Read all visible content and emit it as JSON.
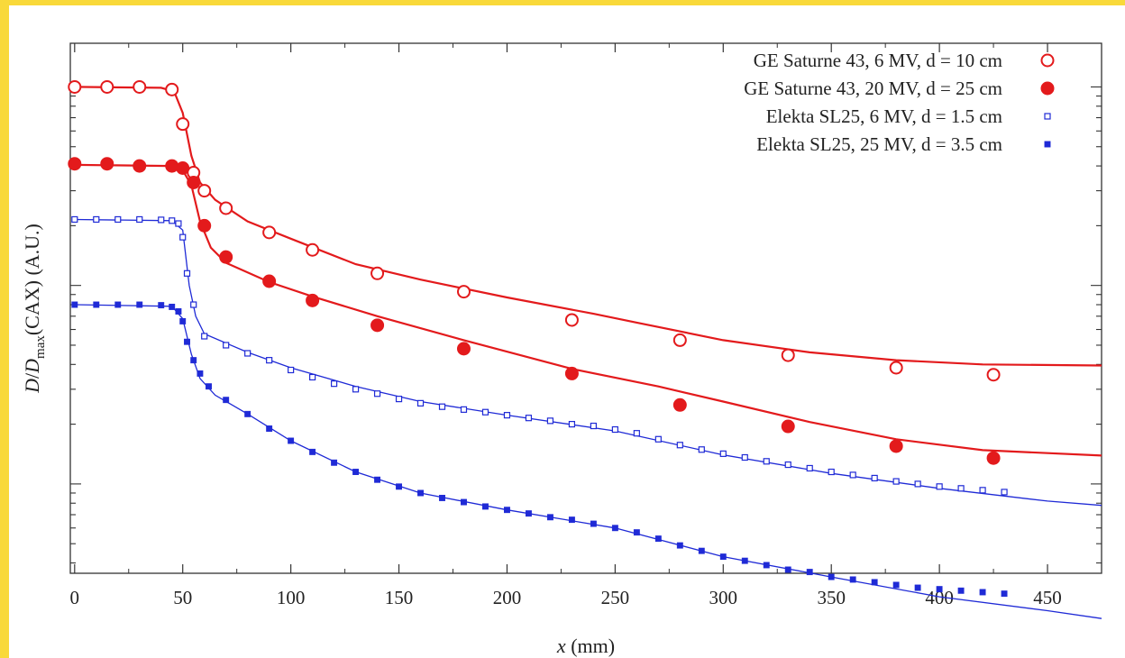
{
  "colors": {
    "red": "#e31a1c",
    "blue": "#1f2ad6",
    "frame_accent": "#f9d93a"
  },
  "chart_data": {
    "type": "scatter",
    "title": "",
    "xlabel": {
      "italic": "x",
      "rest": " (mm)"
    },
    "ylabel": {
      "italic_D": "D",
      "slash": "/",
      "italic_D2": "D",
      "subscript": "max",
      "rest": "(CAX) (A.U.)"
    },
    "xlim": [
      -2,
      475
    ],
    "ylim_log10": [
      -2.45,
      0.22
    ],
    "y_scale": "log",
    "x_ticks": [
      0,
      50,
      100,
      150,
      200,
      250,
      300,
      350,
      400,
      450
    ],
    "x_tick_labels": [
      "0",
      "50",
      "100",
      "150",
      "200",
      "250",
      "300",
      "350",
      "400",
      "450"
    ],
    "legend_position": "top-right",
    "series": [
      {
        "name": "GE Saturne 43, 6 MV, d = 10 cm",
        "color": "#e31a1c",
        "marker": "open-circle",
        "points": [
          [
            0,
            1.0
          ],
          [
            15,
            1.0
          ],
          [
            30,
            1.0
          ],
          [
            45,
            0.97
          ],
          [
            50,
            0.65
          ],
          [
            55,
            0.37
          ],
          [
            60,
            0.3
          ],
          [
            70,
            0.245
          ],
          [
            90,
            0.185
          ],
          [
            110,
            0.151
          ],
          [
            140,
            0.115
          ],
          [
            180,
            0.093
          ],
          [
            230,
            0.067
          ],
          [
            280,
            0.053
          ],
          [
            330,
            0.0445
          ],
          [
            380,
            0.0385
          ],
          [
            425,
            0.0355
          ]
        ],
        "fit": [
          [
            0,
            1.0
          ],
          [
            40,
            0.99
          ],
          [
            46,
            0.95
          ],
          [
            50,
            0.74
          ],
          [
            54,
            0.45
          ],
          [
            58,
            0.33
          ],
          [
            65,
            0.27
          ],
          [
            80,
            0.21
          ],
          [
            100,
            0.172
          ],
          [
            130,
            0.128
          ],
          [
            160,
            0.107
          ],
          [
            200,
            0.087
          ],
          [
            240,
            0.072
          ],
          [
            260,
            0.065
          ],
          [
            300,
            0.053
          ],
          [
            340,
            0.046
          ],
          [
            380,
            0.042
          ],
          [
            420,
            0.04
          ],
          [
            475,
            0.0395
          ]
        ]
      },
      {
        "name": "GE Saturne 43, 20 MV, d = 25 cm",
        "color": "#e31a1c",
        "marker": "filled-circle",
        "points": [
          [
            0,
            0.41
          ],
          [
            15,
            0.41
          ],
          [
            30,
            0.4
          ],
          [
            45,
            0.4
          ],
          [
            50,
            0.39
          ],
          [
            55,
            0.33
          ],
          [
            60,
            0.2
          ],
          [
            70,
            0.139
          ],
          [
            90,
            0.105
          ],
          [
            110,
            0.084
          ],
          [
            140,
            0.063
          ],
          [
            180,
            0.048
          ],
          [
            230,
            0.036
          ],
          [
            280,
            0.025
          ],
          [
            330,
            0.0195
          ],
          [
            380,
            0.0155
          ],
          [
            425,
            0.0135
          ]
        ],
        "fit": [
          [
            0,
            0.405
          ],
          [
            44,
            0.4
          ],
          [
            50,
            0.38
          ],
          [
            54,
            0.32
          ],
          [
            58,
            0.21
          ],
          [
            63,
            0.155
          ],
          [
            70,
            0.13
          ],
          [
            90,
            0.104
          ],
          [
            110,
            0.088
          ],
          [
            140,
            0.07
          ],
          [
            180,
            0.053
          ],
          [
            230,
            0.038
          ],
          [
            270,
            0.031
          ],
          [
            300,
            0.026
          ],
          [
            340,
            0.0205
          ],
          [
            380,
            0.0168
          ],
          [
            420,
            0.0148
          ],
          [
            475,
            0.0139
          ]
        ]
      },
      {
        "name": "Elekta SL25, 6 MV, d = 1.5 cm",
        "color": "#1f2ad6",
        "marker": "open-square",
        "points": [
          [
            0,
            0.215
          ],
          [
            10,
            0.215
          ],
          [
            20,
            0.215
          ],
          [
            30,
            0.215
          ],
          [
            40,
            0.214
          ],
          [
            45,
            0.212
          ],
          [
            48,
            0.205
          ],
          [
            50,
            0.175
          ],
          [
            52,
            0.115
          ],
          [
            55,
            0.08
          ],
          [
            60,
            0.0555
          ],
          [
            70,
            0.05
          ],
          [
            80,
            0.0455
          ],
          [
            90,
            0.042
          ],
          [
            100,
            0.0375
          ],
          [
            110,
            0.0345
          ],
          [
            120,
            0.032
          ],
          [
            130,
            0.03
          ],
          [
            140,
            0.0285
          ],
          [
            150,
            0.0268
          ],
          [
            160,
            0.0255
          ],
          [
            170,
            0.0245
          ],
          [
            180,
            0.0237
          ],
          [
            190,
            0.023
          ],
          [
            200,
            0.0222
          ],
          [
            210,
            0.0215
          ],
          [
            220,
            0.0208
          ],
          [
            230,
            0.02
          ],
          [
            240,
            0.0196
          ],
          [
            250,
            0.0188
          ],
          [
            260,
            0.018
          ],
          [
            270,
            0.0168
          ],
          [
            280,
            0.0157
          ],
          [
            290,
            0.0149
          ],
          [
            300,
            0.0142
          ],
          [
            310,
            0.0136
          ],
          [
            320,
            0.013
          ],
          [
            330,
            0.0125
          ],
          [
            340,
            0.012
          ],
          [
            350,
            0.0115
          ],
          [
            360,
            0.0111
          ],
          [
            370,
            0.0107
          ],
          [
            380,
            0.0103
          ],
          [
            390,
            0.01
          ],
          [
            400,
            0.0097
          ],
          [
            410,
            0.0095
          ],
          [
            420,
            0.0093
          ],
          [
            430,
            0.0091
          ]
        ],
        "fit": [
          [
            0,
            0.215
          ],
          [
            45,
            0.212
          ],
          [
            50,
            0.19
          ],
          [
            53,
            0.1
          ],
          [
            56,
            0.07
          ],
          [
            60,
            0.057
          ],
          [
            80,
            0.046
          ],
          [
            100,
            0.0385
          ],
          [
            130,
            0.031
          ],
          [
            160,
            0.026
          ],
          [
            200,
            0.0222
          ],
          [
            250,
            0.0185
          ],
          [
            300,
            0.014
          ],
          [
            350,
            0.0113
          ],
          [
            400,
            0.0095
          ],
          [
            450,
            0.0082
          ],
          [
            475,
            0.0078
          ]
        ]
      },
      {
        "name": "Elekta SL25, 25 MV, d = 3.5 cm",
        "color": "#1f2ad6",
        "marker": "filled-square",
        "points": [
          [
            0,
            0.08
          ],
          [
            10,
            0.08
          ],
          [
            20,
            0.08
          ],
          [
            30,
            0.08
          ],
          [
            40,
            0.0795
          ],
          [
            45,
            0.078
          ],
          [
            48,
            0.074
          ],
          [
            50,
            0.066
          ],
          [
            52,
            0.052
          ],
          [
            55,
            0.042
          ],
          [
            58,
            0.036
          ],
          [
            62,
            0.031
          ],
          [
            70,
            0.0265
          ],
          [
            80,
            0.0225
          ],
          [
            90,
            0.019
          ],
          [
            100,
            0.0165
          ],
          [
            110,
            0.0145
          ],
          [
            120,
            0.0128
          ],
          [
            130,
            0.0115
          ],
          [
            140,
            0.0105
          ],
          [
            150,
            0.0097
          ],
          [
            160,
            0.009
          ],
          [
            170,
            0.0085
          ],
          [
            180,
            0.0081
          ],
          [
            190,
            0.0077
          ],
          [
            200,
            0.0074
          ],
          [
            210,
            0.0071
          ],
          [
            220,
            0.0068
          ],
          [
            230,
            0.0066
          ],
          [
            240,
            0.0063
          ],
          [
            250,
            0.006
          ],
          [
            260,
            0.0057
          ],
          [
            270,
            0.0053
          ],
          [
            280,
            0.0049
          ],
          [
            290,
            0.0046
          ],
          [
            300,
            0.0043
          ],
          [
            310,
            0.0041
          ],
          [
            320,
            0.0039
          ],
          [
            330,
            0.0037
          ],
          [
            340,
            0.0036
          ],
          [
            350,
            0.0034
          ],
          [
            360,
            0.0033
          ],
          [
            370,
            0.0032
          ],
          [
            380,
            0.0031
          ],
          [
            390,
            0.003
          ],
          [
            400,
            0.00295
          ],
          [
            410,
            0.0029
          ],
          [
            420,
            0.00285
          ],
          [
            430,
            0.0028
          ]
        ],
        "fit": [
          [
            0,
            0.08
          ],
          [
            45,
            0.0785
          ],
          [
            50,
            0.068
          ],
          [
            54,
            0.045
          ],
          [
            58,
            0.034
          ],
          [
            65,
            0.028
          ],
          [
            80,
            0.0225
          ],
          [
            100,
            0.0165
          ],
          [
            130,
            0.0115
          ],
          [
            160,
            0.009
          ],
          [
            200,
            0.0074
          ],
          [
            250,
            0.006
          ],
          [
            300,
            0.0043
          ],
          [
            350,
            0.0034
          ],
          [
            400,
            0.0027
          ],
          [
            450,
            0.0023
          ],
          [
            475,
            0.0021
          ]
        ]
      }
    ]
  }
}
